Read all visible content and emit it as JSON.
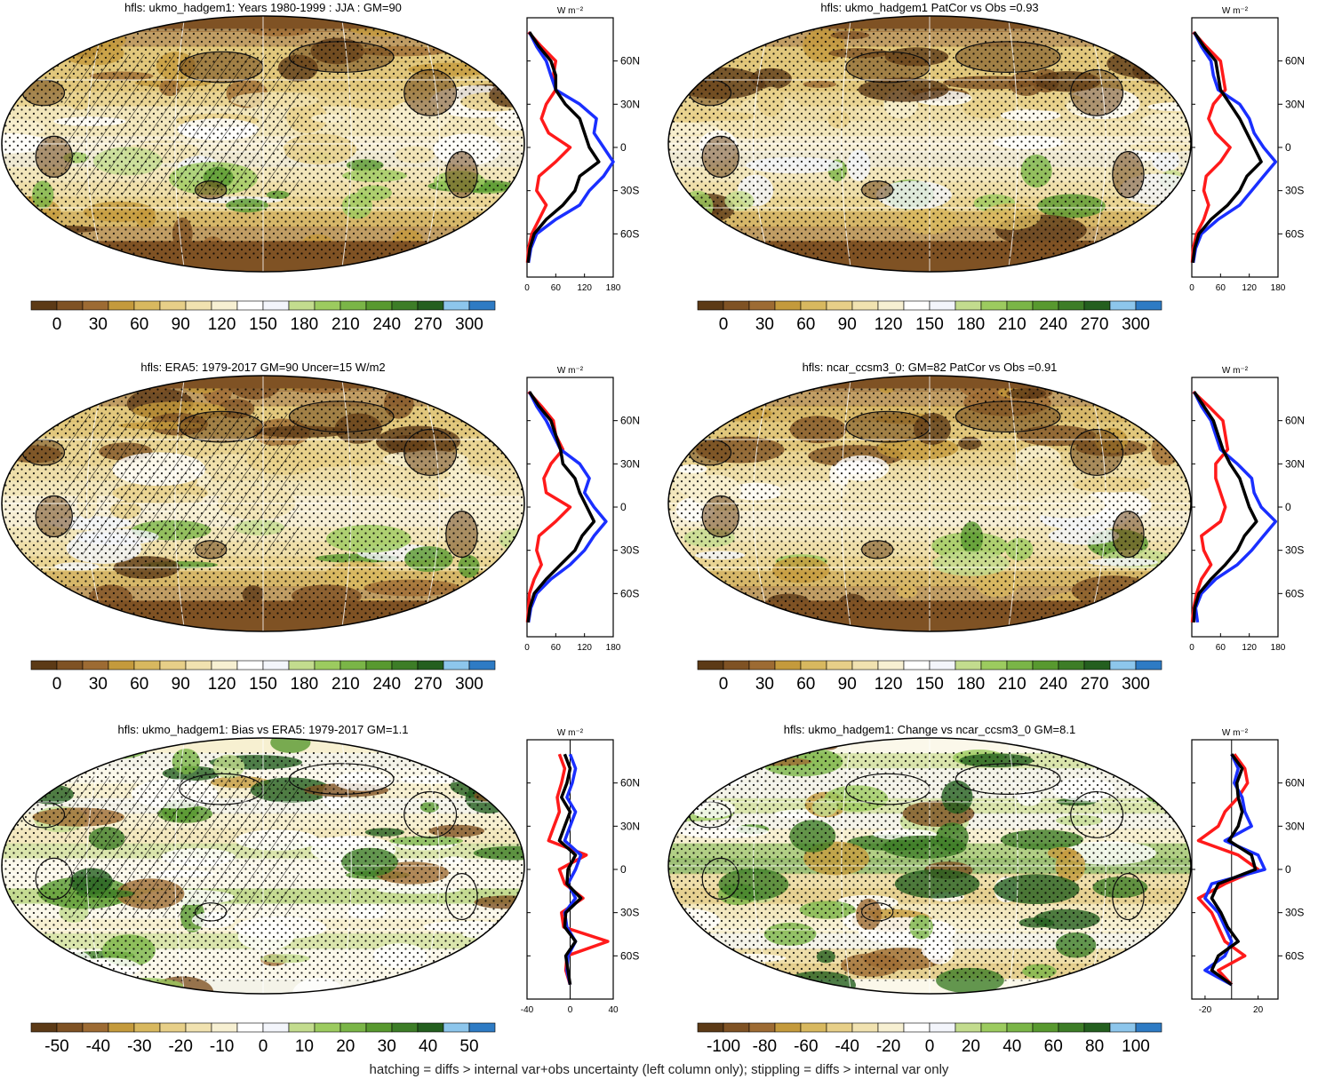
{
  "footnote": "hatching = diffs > internal var+obs uncertainty (left column only); stippling = diffs > internal var only",
  "units": "W m⁻²",
  "colors": {
    "full": [
      "#5c3a16",
      "#7f5224",
      "#9d6b33",
      "#c49a3c",
      "#d8b85f",
      "#e7cf88",
      "#f1e2b0",
      "#f7f0d2",
      "#ffffff",
      "#f3f5fb",
      "#c3dc8e",
      "#9ccb5f",
      "#7ab547",
      "#58992f",
      "#3d7d27",
      "#245f1f",
      "#8dc6ec",
      "#2e7bc4"
    ],
    "obs_line": "#1a2fff",
    "model_line": "#000000",
    "diff_line": "#ff1a1a"
  },
  "chart_data": [
    {
      "type": "heatmap",
      "title": "hfls: ukmo_hadgem1: Years 1980-1999 : JJA : GM=90",
      "kind": "field",
      "hatched": true,
      "colorbar_labels": [
        "0",
        "30",
        "60",
        "90",
        "120",
        "150",
        "180",
        "210",
        "240",
        "270",
        "300"
      ],
      "profile": {
        "xticks": [
          "0",
          "60",
          "120",
          "180"
        ],
        "xlim": [
          0,
          180
        ],
        "ylim": [
          -90,
          90
        ],
        "yticks": [
          "60N",
          "30N",
          "0",
          "30S",
          "60S"
        ],
        "yvals": [
          60,
          30,
          0,
          -30,
          -60
        ],
        "lat": [
          80,
          70,
          60,
          50,
          40,
          30,
          20,
          10,
          0,
          -10,
          -20,
          -30,
          -40,
          -50,
          -60,
          -70,
          -80
        ],
        "series": [
          {
            "color": "obs",
            "values": [
              5,
              20,
              40,
              50,
              60,
              110,
              145,
              140,
              160,
              185,
              160,
              130,
              110,
              60,
              20,
              8,
              3
            ]
          },
          {
            "color": "model",
            "values": [
              5,
              25,
              50,
              60,
              60,
              80,
              110,
              120,
              130,
              150,
              110,
              100,
              75,
              40,
              15,
              6,
              2
            ]
          },
          {
            "color": "diff",
            "values": [
              3,
              30,
              60,
              55,
              60,
              40,
              30,
              45,
              90,
              60,
              25,
              20,
              40,
              25,
              10,
              3,
              1
            ]
          }
        ]
      }
    },
    {
      "type": "heatmap",
      "title": "hfls: ukmo_hadgem1 PatCor vs Obs =0.93",
      "kind": "field",
      "hatched": false,
      "colorbar_labels": [
        "0",
        "30",
        "60",
        "90",
        "120",
        "150",
        "180",
        "210",
        "240",
        "270",
        "300"
      ],
      "profile": {
        "xticks": [
          "0",
          "60",
          "120",
          "180"
        ],
        "xlim": [
          0,
          180
        ],
        "ylim": [
          -90,
          90
        ],
        "yticks": [
          "60N",
          "30N",
          "0",
          "30S",
          "60S"
        ],
        "yvals": [
          60,
          30,
          0,
          -30,
          -60
        ],
        "lat": [
          80,
          70,
          60,
          50,
          40,
          30,
          20,
          10,
          0,
          -10,
          -20,
          -30,
          -40,
          -50,
          -60,
          -70,
          -80
        ],
        "series": [
          {
            "color": "obs",
            "values": [
              5,
              20,
              40,
              45,
              55,
              100,
              120,
              130,
              150,
              175,
              150,
              125,
              100,
              55,
              20,
              8,
              3
            ]
          },
          {
            "color": "model",
            "values": [
              5,
              25,
              50,
              55,
              60,
              80,
              100,
              115,
              130,
              145,
              115,
              100,
              75,
              40,
              15,
              6,
              2
            ]
          },
          {
            "color": "diff",
            "values": [
              3,
              30,
              60,
              65,
              70,
              45,
              35,
              50,
              80,
              60,
              30,
              25,
              35,
              25,
              10,
              3,
              1
            ]
          }
        ]
      }
    },
    {
      "type": "heatmap",
      "title": "hfls: ERA5: 1979-2017 GM=90 Uncer=15 W/m2",
      "kind": "field",
      "hatched": true,
      "colorbar_labels": [
        "0",
        "30",
        "60",
        "90",
        "120",
        "150",
        "180",
        "210",
        "240",
        "270",
        "300"
      ],
      "profile": {
        "xticks": [
          "0",
          "60",
          "120",
          "180"
        ],
        "xlim": [
          0,
          180
        ],
        "ylim": [
          -90,
          90
        ],
        "yticks": [
          "60N",
          "30N",
          "0",
          "30S",
          "60S"
        ],
        "yvals": [
          60,
          30,
          0,
          -30,
          -60
        ],
        "lat": [
          80,
          70,
          60,
          50,
          40,
          30,
          20,
          10,
          0,
          -10,
          -20,
          -30,
          -40,
          -50,
          -60,
          -70,
          -80
        ],
        "series": [
          {
            "color": "obs",
            "values": [
              5,
              20,
              40,
              55,
              70,
              110,
              130,
              120,
              140,
              165,
              140,
              120,
              90,
              50,
              20,
              8,
              3
            ]
          },
          {
            "color": "model",
            "values": [
              5,
              25,
              50,
              60,
              70,
              75,
              100,
              110,
              125,
              140,
              115,
              100,
              70,
              40,
              15,
              6,
              2
            ]
          },
          {
            "color": "diff",
            "values": [
              3,
              30,
              55,
              60,
              75,
              50,
              35,
              40,
              90,
              60,
              25,
              20,
              30,
              15,
              5,
              3,
              1
            ]
          }
        ]
      }
    },
    {
      "type": "heatmap",
      "title": "hfls: ncar_ccsm3_0: GM=82 PatCor vs Obs =0.91",
      "kind": "field",
      "hatched": false,
      "colorbar_labels": [
        "0",
        "30",
        "60",
        "90",
        "120",
        "150",
        "180",
        "210",
        "240",
        "270",
        "300"
      ],
      "profile": {
        "xticks": [
          "0",
          "60",
          "120",
          "180"
        ],
        "xlim": [
          0,
          180
        ],
        "ylim": [
          -90,
          90
        ],
        "yticks": [
          "60N",
          "30N",
          "0",
          "30S",
          "60S"
        ],
        "yvals": [
          60,
          30,
          0,
          -30,
          -60
        ],
        "lat": [
          80,
          70,
          60,
          50,
          40,
          30,
          20,
          10,
          0,
          -10,
          -20,
          -30,
          -40,
          -50,
          -60,
          -70,
          -80
        ],
        "series": [
          {
            "color": "obs",
            "values": [
              5,
              20,
              40,
              50,
              60,
              95,
              125,
              130,
              145,
              175,
              150,
              125,
              95,
              50,
              20,
              8,
              12
            ]
          },
          {
            "color": "model",
            "values": [
              5,
              25,
              45,
              55,
              65,
              80,
              100,
              110,
              120,
              135,
              110,
              95,
              70,
              40,
              15,
              6,
              4
            ]
          },
          {
            "color": "diff",
            "values": [
              3,
              35,
              65,
              70,
              75,
              50,
              50,
              60,
              70,
              60,
              20,
              25,
              40,
              20,
              10,
              4,
              1
            ]
          }
        ]
      }
    },
    {
      "type": "heatmap",
      "title": "hfls: ukmo_hadgem1: Bias vs ERA5: 1979-2017 GM=1.1",
      "kind": "diff",
      "hatched": true,
      "colorbar_labels": [
        "-50",
        "-40",
        "-30",
        "-20",
        "-10",
        "0",
        "10",
        "20",
        "30",
        "40",
        "50"
      ],
      "profile": {
        "xticks": [
          "-40",
          "0",
          "40"
        ],
        "xlim": [
          -40,
          40
        ],
        "ylim": [
          -90,
          90
        ],
        "yticks": [
          "60N",
          "30N",
          "0",
          "30S",
          "60S"
        ],
        "yvals": [
          60,
          30,
          0,
          -30,
          -60
        ],
        "lat": [
          80,
          70,
          60,
          50,
          40,
          30,
          20,
          10,
          0,
          -10,
          -20,
          -30,
          -40,
          -50,
          -60,
          -70,
          -80
        ],
        "series": [
          {
            "color": "obs",
            "values": [
              0,
              5,
              2,
              -3,
              5,
              0,
              -5,
              10,
              5,
              -2,
              5,
              -5,
              -3,
              5,
              -2,
              -3,
              0
            ]
          },
          {
            "color": "model",
            "values": [
              -5,
              0,
              -3,
              -8,
              0,
              -5,
              -10,
              5,
              -2,
              -3,
              10,
              -4,
              -5,
              5,
              -4,
              -2,
              0
            ]
          },
          {
            "color": "diff",
            "values": [
              -10,
              -5,
              -8,
              -12,
              -10,
              -15,
              -20,
              15,
              -10,
              -5,
              12,
              -8,
              -6,
              35,
              -3,
              -4,
              0
            ]
          }
        ]
      }
    },
    {
      "type": "heatmap",
      "title": "hfls: ukmo_hadgem1: Change vs ncar_ccsm3_0 GM=8.1",
      "kind": "diff",
      "hatched": false,
      "colorbar_labels": [
        "-100",
        "-80",
        "-60",
        "-40",
        "-20",
        "0",
        "20",
        "40",
        "60",
        "80",
        "100"
      ],
      "profile": {
        "xticks": [
          "-20",
          "20"
        ],
        "xlim": [
          -30,
          35
        ],
        "ylim": [
          -90,
          90
        ],
        "yticks": [
          "60N",
          "30N",
          "0",
          "30S",
          "60S"
        ],
        "yvals": [
          60,
          30,
          0,
          -30,
          -60
        ],
        "lat": [
          80,
          70,
          60,
          50,
          40,
          30,
          20,
          10,
          0,
          -10,
          -20,
          -30,
          -40,
          -50,
          -60,
          -70,
          -80
        ],
        "series": [
          {
            "color": "obs",
            "values": [
              0,
              5,
              2,
              8,
              10,
              15,
              -5,
              20,
              25,
              -15,
              -20,
              -10,
              -5,
              0,
              -5,
              -20,
              0
            ]
          },
          {
            "color": "model",
            "values": [
              0,
              8,
              4,
              5,
              8,
              5,
              -2,
              15,
              18,
              -10,
              -15,
              -8,
              -3,
              5,
              -10,
              -15,
              0
            ]
          },
          {
            "color": "diff",
            "values": [
              2,
              10,
              12,
              5,
              -5,
              -10,
              -25,
              5,
              20,
              -5,
              -25,
              -15,
              -10,
              -5,
              10,
              -10,
              0
            ]
          }
        ]
      }
    }
  ]
}
